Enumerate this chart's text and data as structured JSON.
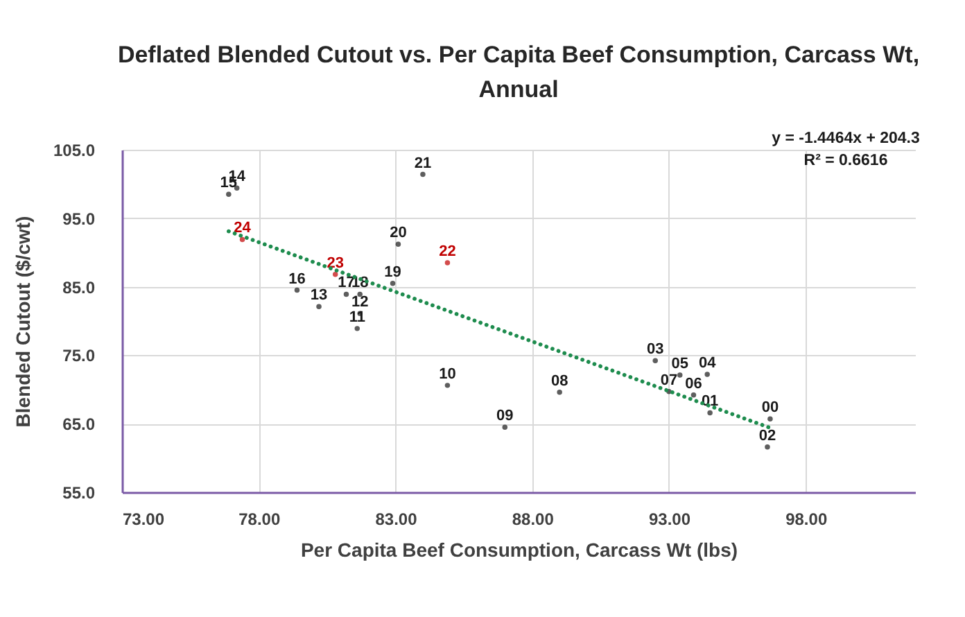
{
  "chart_data": {
    "type": "scatter",
    "title": "Deflated Blended Cutout vs. Per Capita Beef Consumption, Carcass Wt, Annual",
    "xlabel": "Per Capita Beef Consumption, Carcass Wt (lbs)",
    "ylabel": "Blended Cutout ($/cwt)",
    "xlim": [
      73,
      102
    ],
    "xticks": [
      {
        "value": 73,
        "label": "73.00"
      },
      {
        "value": 78,
        "label": "78.00"
      },
      {
        "value": 83,
        "label": "83.00"
      },
      {
        "value": 88,
        "label": "88.00"
      },
      {
        "value": 93,
        "label": "93.00"
      },
      {
        "value": 98,
        "label": "98.00"
      }
    ],
    "ylim": [
      55,
      105
    ],
    "yticks": [
      {
        "value": 55,
        "label": "55.0"
      },
      {
        "value": 65,
        "label": "65.0"
      },
      {
        "value": 75,
        "label": "75.0"
      },
      {
        "value": 85,
        "label": "85.0"
      },
      {
        "value": 95,
        "label": "95.0"
      },
      {
        "value": 105,
        "label": "105.0"
      }
    ],
    "grid": true,
    "marker": "circle",
    "annotations": [
      "y = -1.4464x + 204.3",
      "R² = 0.6616"
    ],
    "series": [
      {
        "type": "scatter",
        "name": "00",
        "color": "#1a1a1a",
        "x": [
          96.7
        ],
        "values": [
          65.7
        ]
      },
      {
        "name": "01",
        "color": "#1a1a1a",
        "x": [
          94.5
        ],
        "values": [
          66.6
        ]
      },
      {
        "name": "02",
        "color": "#1a1a1a",
        "x": [
          96.6
        ],
        "values": [
          61.6
        ]
      },
      {
        "name": "03",
        "color": "#1a1a1a",
        "x": [
          92.5
        ],
        "values": [
          74.2
        ]
      },
      {
        "name": "04",
        "color": "#1a1a1a",
        "x": [
          94.4
        ],
        "values": [
          72.2
        ]
      },
      {
        "name": "05",
        "color": "#1a1a1a",
        "x": [
          93.4
        ],
        "values": [
          72.1
        ]
      },
      {
        "name": "06",
        "color": "#1a1a1a",
        "x": [
          93.9
        ],
        "values": [
          69.2
        ]
      },
      {
        "name": "07",
        "color": "#1a1a1a",
        "x": [
          93.0
        ],
        "values": [
          69.7
        ]
      },
      {
        "name": "08",
        "color": "#1a1a1a",
        "x": [
          89.0
        ],
        "values": [
          69.6
        ]
      },
      {
        "name": "09",
        "color": "#1a1a1a",
        "x": [
          87.0
        ],
        "values": [
          64.5
        ]
      },
      {
        "name": "10",
        "color": "#1a1a1a",
        "x": [
          84.9
        ],
        "values": [
          70.6
        ]
      },
      {
        "name": "11",
        "color": "#1a1a1a",
        "x": [
          81.6
        ],
        "values": [
          78.9
        ]
      },
      {
        "name": "12",
        "color": "#1a1a1a",
        "x": [
          81.7
        ],
        "values": [
          81.1
        ]
      },
      {
        "name": "13",
        "color": "#1a1a1a",
        "x": [
          80.2
        ],
        "values": [
          82.1
        ]
      },
      {
        "name": "14",
        "color": "#1a1a1a",
        "x": [
          77.2
        ],
        "values": [
          99.4
        ]
      },
      {
        "name": "15",
        "color": "#1a1a1a",
        "x": [
          76.9
        ],
        "values": [
          98.5
        ]
      },
      {
        "name": "16",
        "color": "#1a1a1a",
        "x": [
          79.4
        ],
        "values": [
          84.5
        ]
      },
      {
        "name": "17",
        "color": "#1a1a1a",
        "x": [
          81.2
        ],
        "values": [
          83.9
        ]
      },
      {
        "name": "18",
        "color": "#1a1a1a",
        "x": [
          81.7
        ],
        "values": [
          83.9
        ]
      },
      {
        "name": "19",
        "color": "#1a1a1a",
        "x": [
          82.9
        ],
        "values": [
          85.5
        ]
      },
      {
        "name": "20",
        "color": "#1a1a1a",
        "x": [
          83.1
        ],
        "values": [
          91.2
        ]
      },
      {
        "name": "21",
        "color": "#1a1a1a",
        "x": [
          84.0
        ],
        "values": [
          101.4
        ]
      },
      {
        "name": "22",
        "color": "#c00000",
        "x": [
          84.9
        ],
        "values": [
          88.5
        ]
      },
      {
        "name": "23",
        "color": "#c00000",
        "x": [
          80.8
        ],
        "values": [
          86.8
        ]
      },
      {
        "name": "24",
        "color": "#c00000",
        "x": [
          77.4
        ],
        "values": [
          91.9
        ]
      },
      {
        "type": "line",
        "x": [
          76.9,
          96.7
        ],
        "values": [
          93.1,
          64.4
        ],
        "color": "#1e8c4e",
        "line_style": "dotted",
        "marker": "none"
      }
    ]
  }
}
